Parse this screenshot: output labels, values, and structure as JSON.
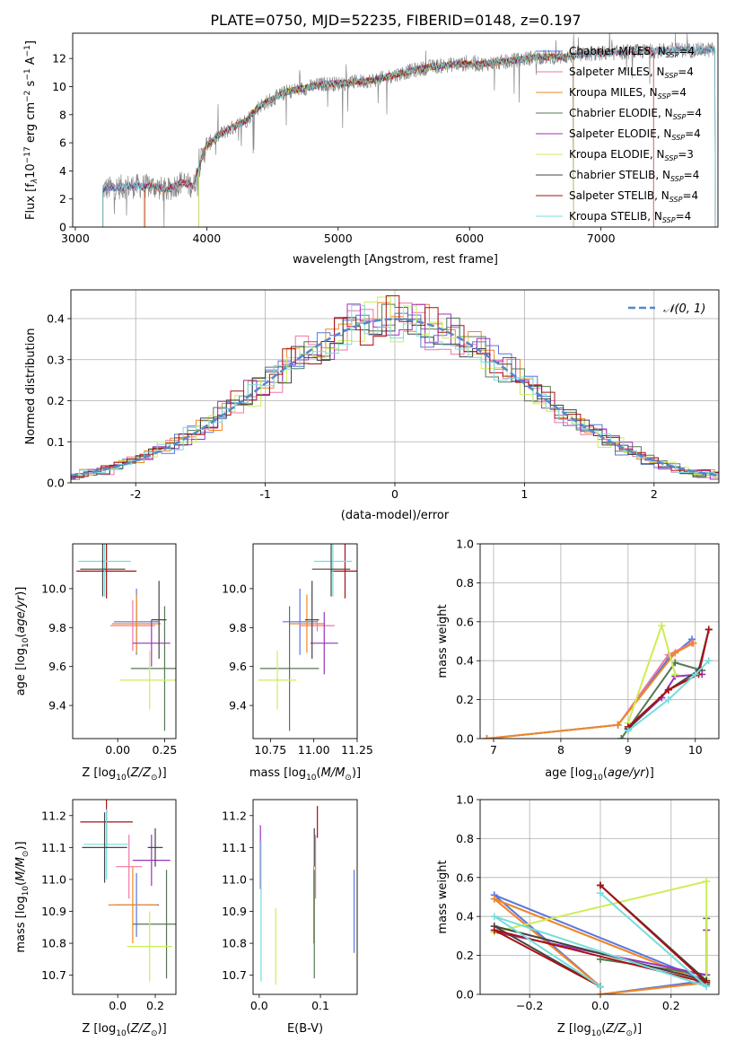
{
  "page_title": "PLATE=0750, MJD=52235, FIBERID=0148, z=0.197",
  "legend_models": [
    {
      "name": "Chabrier MILES, N_SSP=4",
      "imf": "Chabrier MILES",
      "nssp": "4",
      "color": "#5577dd"
    },
    {
      "name": "Salpeter MILES, N_SSP=4",
      "imf": "Salpeter MILES",
      "nssp": "4",
      "color": "#ee77aa"
    },
    {
      "name": "Kroupa MILES, N_SSP=4",
      "imf": "Kroupa MILES",
      "nssp": "4",
      "color": "#ee8822"
    },
    {
      "name": "Chabrier ELODIE, N_SSP=4",
      "imf": "Chabrier ELODIE",
      "nssp": "4",
      "color": "#557755"
    },
    {
      "name": "Salpeter ELODIE, N_SSP=4",
      "imf": "Salpeter ELODIE",
      "nssp": "4",
      "color": "#9933bb"
    },
    {
      "name": "Kroupa ELODIE, N_SSP=3",
      "imf": "Kroupa ELODIE",
      "nssp": "3",
      "color": "#ccee55"
    },
    {
      "name": "Chabrier STELIB, N_SSP=4",
      "imf": "Chabrier STELIB",
      "nssp": "4",
      "color": "#444444"
    },
    {
      "name": "Salpeter STELIB, N_SSP=4",
      "imf": "Salpeter STELIB",
      "nssp": "4",
      "color": "#aa1111"
    },
    {
      "name": "Kroupa STELIB, N_SSP=4",
      "imf": "Kroupa STELIB",
      "nssp": "4",
      "color": "#77dddd"
    }
  ],
  "chart_data": [
    {
      "id": "spectrum",
      "type": "line",
      "title": "PLATE=0750, MJD=52235, FIBERID=0148, z=0.197",
      "xlabel": "wavelength [Angstrom, rest frame]",
      "ylabel_parts": [
        "Flux [f",
        "λ",
        "10",
        "−17",
        " erg cm",
        "−2",
        " s",
        "−1",
        " A",
        "−1",
        "]"
      ],
      "xlim": [
        2980,
        7890
      ],
      "ylim": [
        0,
        13.8
      ],
      "xticks": [
        3000,
        4000,
        5000,
        6000,
        7000
      ],
      "yticks": [
        0,
        2,
        4,
        6,
        8,
        10,
        12
      ],
      "data_color": "#888888",
      "continuum_x": [
        3210,
        3400,
        3600,
        3700,
        3800,
        3900,
        3950,
        4000,
        4100,
        4200,
        4300,
        4400,
        4600,
        4800,
        4900,
        5000,
        5100,
        5200,
        5300,
        5500,
        5700,
        5900,
        6100,
        6300,
        6500,
        6700,
        6900,
        7100,
        7300,
        7500,
        7700,
        7870
      ],
      "continuum_y": [
        2.7,
        2.9,
        2.9,
        2.6,
        3.2,
        2.9,
        4.6,
        5.8,
        6.6,
        7.1,
        7.6,
        8.6,
        9.6,
        10.0,
        10.2,
        10.2,
        10.3,
        10.4,
        10.5,
        11.0,
        11.4,
        11.6,
        11.6,
        11.8,
        12.1,
        12.1,
        12.3,
        12.4,
        12.5,
        12.6,
        12.6,
        12.6
      ],
      "model_start_x": [
        3210,
        3210,
        3520,
        3940,
        3210,
        3940,
        3210,
        3530,
        3210
      ],
      "model_end_x": [
        7870,
        7870,
        6790,
        6790,
        6790,
        6790,
        7870,
        7400,
        7870
      ],
      "grid": false
    },
    {
      "id": "residuals",
      "type": "histogram",
      "xlabel": "(data-model)/error",
      "ylabel": "Normed distribution",
      "xlim": [
        -2.5,
        2.5
      ],
      "ylim": [
        0,
        0.47
      ],
      "xticks": [
        -2,
        -1,
        0,
        1,
        2
      ],
      "yticks": [
        0.0,
        0.1,
        0.2,
        0.3,
        0.4
      ],
      "legend_label": "𝒩(0, 1)",
      "curve_color": "#5588cc",
      "grid": true,
      "bin_width": 0.1
    },
    {
      "id": "age_vs_Z",
      "type": "errorbar",
      "xlabel": "Z [log10(Z/Z⊙)]",
      "xlabel_parts": [
        "Z [log",
        "10",
        "(",
        "Z/Z",
        "⊙",
        ")]"
      ],
      "ylabel": "age [log10(age/yr)]",
      "xlim": [
        -0.24,
        0.31
      ],
      "ylim": [
        9.23,
        10.23
      ],
      "xticks": [
        0.0,
        0.25
      ],
      "yticks": [
        9.4,
        9.6,
        9.8,
        10.0
      ],
      "grid": false,
      "points": [
        {
          "x": 0.1,
          "y": 9.83,
          "xe": 0.12,
          "ye": 0.17,
          "color": "#5577dd"
        },
        {
          "x": 0.08,
          "y": 9.81,
          "xe": 0.12,
          "ye": 0.13,
          "color": "#ee77aa"
        },
        {
          "x": 0.1,
          "y": 9.82,
          "xe": 0.13,
          "ye": 0.15,
          "color": "#ee8822"
        },
        {
          "x": 0.25,
          "y": 9.59,
          "xe": 0.18,
          "ye": 0.32,
          "color": "#557755"
        },
        {
          "x": 0.18,
          "y": 9.72,
          "xe": 0.1,
          "ye": 0.12,
          "color": "#9933bb"
        },
        {
          "x": 0.17,
          "y": 9.53,
          "xe": 0.16,
          "ye": 0.15,
          "color": "#ccee55"
        },
        {
          "x": 0.22,
          "y": 9.84,
          "xe": 0.04,
          "ye": 0.2,
          "color": "#444444"
        },
        {
          "x": -0.06,
          "y": 10.09,
          "xe": 0.16,
          "ye": 0.14,
          "color": "#aa1111"
        },
        {
          "x": -0.07,
          "y": 10.14,
          "xe": 0.14,
          "ye": 0.18,
          "color": "#77dddd"
        },
        {
          "x": -0.08,
          "y": 10.1,
          "xe": 0.12,
          "ye": 0.14,
          "color": "#444444"
        }
      ]
    },
    {
      "id": "age_vs_mass",
      "type": "errorbar",
      "xlabel": "mass [log10(M/M⊙)]",
      "xlabel_parts": [
        "mass [log",
        "10",
        "(",
        "M/M",
        "⊙",
        ")]"
      ],
      "ylabel": "",
      "xlim": [
        10.65,
        11.25
      ],
      "ylim": [
        9.23,
        10.23
      ],
      "xticks": [
        10.75,
        11.0,
        11.25
      ],
      "yticks": [
        9.4,
        9.6,
        9.8,
        10.0
      ],
      "grid": false,
      "points": [
        {
          "x": 10.92,
          "y": 9.83,
          "xe": 0.1,
          "ye": 0.17,
          "color": "#5577dd"
        },
        {
          "x": 11.02,
          "y": 9.81,
          "xe": 0.1,
          "ye": 0.03,
          "color": "#ee77aa"
        },
        {
          "x": 10.96,
          "y": 9.82,
          "xe": 0.1,
          "ye": 0.15,
          "color": "#ee8822"
        },
        {
          "x": 10.86,
          "y": 9.59,
          "xe": 0.17,
          "ye": 0.32,
          "color": "#557755"
        },
        {
          "x": 11.06,
          "y": 9.72,
          "xe": 0.08,
          "ye": 0.16,
          "color": "#9933bb"
        },
        {
          "x": 10.79,
          "y": 9.53,
          "xe": 0.11,
          "ye": 0.15,
          "color": "#ccee55"
        },
        {
          "x": 10.99,
          "y": 9.84,
          "xe": 0.04,
          "ye": 0.2,
          "color": "#444444"
        },
        {
          "x": 11.18,
          "y": 10.09,
          "xe": 0.08,
          "ye": 0.14,
          "color": "#aa1111"
        },
        {
          "x": 11.11,
          "y": 10.14,
          "xe": 0.11,
          "ye": 0.18,
          "color": "#77dddd"
        },
        {
          "x": 11.1,
          "y": 10.1,
          "xe": 0.11,
          "ye": 0.14,
          "color": "#444444"
        }
      ]
    },
    {
      "id": "massweight_vs_age",
      "type": "line",
      "xlabel": "age [log10(age/yr)]",
      "xlabel_parts": [
        "age  [log",
        "10",
        "(",
        "age/yr",
        ")]"
      ],
      "ylabel": "mass weight",
      "xlim": [
        6.8,
        10.35
      ],
      "ylim": [
        0,
        1
      ],
      "xticks": [
        7,
        8,
        9,
        10
      ],
      "yticks": [
        0.0,
        0.2,
        0.4,
        0.6,
        0.8,
        1.0
      ],
      "grid": true,
      "series": [
        {
          "color": "#5577dd",
          "x": [
            6.9,
            8.85,
            9.6,
            9.95
          ],
          "y": [
            0.0,
            0.07,
            0.41,
            0.51
          ]
        },
        {
          "color": "#ee77aa",
          "x": [
            6.9,
            8.85,
            9.6,
            9.95
          ],
          "y": [
            0.0,
            0.07,
            0.43,
            0.49
          ]
        },
        {
          "color": "#ee8822",
          "x": [
            6.9,
            8.85,
            9.7,
            9.97
          ],
          "y": [
            0.0,
            0.07,
            0.44,
            0.49
          ]
        },
        {
          "color": "#557755",
          "x": [
            8.9,
            9.0,
            9.7,
            10.1
          ],
          "y": [
            0.0,
            0.05,
            0.39,
            0.35
          ]
        },
        {
          "color": "#9933bb",
          "x": [
            9.0,
            9.5,
            9.7,
            10.1
          ],
          "y": [
            0.05,
            0.21,
            0.32,
            0.33
          ]
        },
        {
          "color": "#ccee55",
          "x": [
            9.0,
            9.5,
            9.7
          ],
          "y": [
            0.08,
            0.58,
            0.33
          ]
        },
        {
          "color": "#444444",
          "x": [
            9.0,
            9.6,
            10.05,
            10.2
          ],
          "y": [
            0.05,
            0.25,
            0.35,
            0.56
          ]
        },
        {
          "color": "#aa1111",
          "x": [
            9.0,
            9.6,
            10.05,
            10.2
          ],
          "y": [
            0.06,
            0.25,
            0.33,
            0.56
          ]
        },
        {
          "color": "#77dddd",
          "x": [
            9.0,
            9.6,
            10.0,
            10.2
          ],
          "y": [
            0.04,
            0.2,
            0.33,
            0.4
          ]
        }
      ]
    },
    {
      "id": "mass_vs_Z",
      "type": "errorbar",
      "xlabel": "Z [log10(Z/Z⊙)]",
      "xlabel_parts": [
        "Z [log",
        "10",
        "(",
        "Z/Z",
        "⊙",
        ")]"
      ],
      "ylabel": "mass [log10(M/M⊙)]",
      "xlim": [
        -0.24,
        0.31
      ],
      "ylim": [
        10.64,
        11.25
      ],
      "xticks": [
        0.0,
        0.2
      ],
      "yticks": [
        10.7,
        10.8,
        10.9,
        11.0,
        11.1,
        11.2
      ],
      "grid": false,
      "points": [
        {
          "x": 0.1,
          "y": 10.92,
          "xe": 0.12,
          "ye": 0.1,
          "color": "#5577dd"
        },
        {
          "x": 0.06,
          "y": 11.04,
          "xe": 0.07,
          "ye": 0.1,
          "color": "#ee77aa"
        },
        {
          "x": 0.08,
          "y": 10.92,
          "xe": 0.13,
          "ye": 0.12,
          "color": "#ee8822"
        },
        {
          "x": 0.26,
          "y": 10.86,
          "xe": 0.18,
          "ye": 0.17,
          "color": "#557755"
        },
        {
          "x": 0.18,
          "y": 11.06,
          "xe": 0.1,
          "ye": 0.08,
          "color": "#9933bb"
        },
        {
          "x": 0.17,
          "y": 10.79,
          "xe": 0.12,
          "ye": 0.11,
          "color": "#ccee55"
        },
        {
          "x": 0.2,
          "y": 11.1,
          "xe": 0.04,
          "ye": 0.06,
          "color": "#444444"
        },
        {
          "x": -0.06,
          "y": 11.18,
          "xe": 0.14,
          "ye": 0.08,
          "color": "#aa1111"
        },
        {
          "x": -0.06,
          "y": 11.11,
          "xe": 0.12,
          "ye": 0.11,
          "color": "#77dddd"
        },
        {
          "x": -0.07,
          "y": 11.1,
          "xe": 0.12,
          "ye": 0.11,
          "color": "#444444"
        }
      ]
    },
    {
      "id": "mass_vs_EBV",
      "type": "errorbar",
      "xlabel": "E(B-V)",
      "ylabel": "",
      "xlim": [
        -0.01,
        0.16
      ],
      "ylim": [
        10.64,
        11.25
      ],
      "xticks": [
        0.0,
        0.1
      ],
      "yticks": [
        10.7,
        10.8,
        10.9,
        11.0,
        11.1,
        11.2
      ],
      "grid": false,
      "points": [
        {
          "x": 0.155,
          "y": 10.9,
          "xe": 0,
          "ye": 0.13,
          "color": "#5577dd"
        },
        {
          "x": 0.092,
          "y": 11.04,
          "xe": 0,
          "ye": 0.1,
          "color": "#ee77aa"
        },
        {
          "x": 0.089,
          "y": 10.92,
          "xe": 0,
          "ye": 0.12,
          "color": "#ee8822"
        },
        {
          "x": 0.09,
          "y": 10.86,
          "xe": 0,
          "ye": 0.17,
          "color": "#557755"
        },
        {
          "x": 0.002,
          "y": 11.07,
          "xe": 0,
          "ye": 0.1,
          "color": "#9933bb"
        },
        {
          "x": 0.027,
          "y": 10.79,
          "xe": 0,
          "ye": 0.12,
          "color": "#ccee55"
        },
        {
          "x": 0.09,
          "y": 11.1,
          "xe": 0,
          "ye": 0.06,
          "color": "#444444"
        },
        {
          "x": 0.095,
          "y": 11.18,
          "xe": 0,
          "ye": 0.05,
          "color": "#aa1111"
        },
        {
          "x": 0.003,
          "y": 10.9,
          "xe": 0,
          "ye": 0.22,
          "color": "#77dddd"
        }
      ]
    },
    {
      "id": "massweight_vs_Z",
      "type": "line",
      "xlabel": "Z [log10(Z/Z⊙)]",
      "xlabel_parts": [
        "Z [log",
        "10",
        "(",
        "Z/Z",
        "⊙",
        ")]"
      ],
      "ylabel": "mass weight",
      "xlim": [
        -0.34,
        0.335
      ],
      "ylim": [
        0,
        1
      ],
      "xticks": [
        -0.2,
        0.0,
        0.2
      ],
      "yticks": [
        0.0,
        0.2,
        0.4,
        0.6,
        0.8,
        1.0
      ],
      "grid": true,
      "series": [
        {
          "color": "#5577dd",
          "x": [
            0.0,
            0.3,
            -0.3,
            0.0
          ],
          "y": [
            0.0,
            0.07,
            0.51,
            0.04
          ]
        },
        {
          "color": "#ee77aa",
          "x": [
            0.0,
            0.3,
            -0.3,
            0.0
          ],
          "y": [
            0.0,
            0.06,
            0.49,
            0.04
          ]
        },
        {
          "color": "#ee8822",
          "x": [
            0.0,
            0.3,
            -0.3,
            0.0
          ],
          "y": [
            0.0,
            0.06,
            0.49,
            0.04
          ]
        },
        {
          "color": "#557755",
          "x": [
            0.0,
            0.3,
            0.3,
            0.3
          ],
          "y": [
            0.18,
            0.1,
            0.39,
            0.05
          ]
        },
        {
          "color": "#9933bb",
          "x": [
            -0.3,
            0.3,
            0.3
          ],
          "y": [
            0.32,
            0.1,
            0.33
          ]
        },
        {
          "color": "#ccee55",
          "x": [
            -0.3,
            0.3,
            0.3
          ],
          "y": [
            0.32,
            0.58,
            0.08
          ]
        },
        {
          "color": "#444444",
          "x": [
            0.0,
            0.3,
            -0.3,
            0.0
          ],
          "y": [
            0.56,
            0.07,
            0.35,
            0.04
          ]
        },
        {
          "color": "#aa1111",
          "x": [
            0.0,
            0.3,
            -0.3,
            0.0
          ],
          "y": [
            0.56,
            0.06,
            0.33,
            0.04
          ]
        },
        {
          "color": "#77dddd",
          "x": [
            0.0,
            0.3,
            -0.3,
            0.0
          ],
          "y": [
            0.52,
            0.04,
            0.4,
            0.04
          ]
        }
      ]
    }
  ]
}
